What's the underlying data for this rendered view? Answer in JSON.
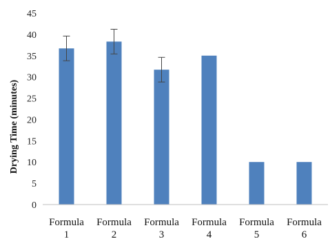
{
  "chart_data": {
    "type": "bar",
    "title": "",
    "xlabel": "",
    "ylabel": "Drying Time (minutes)",
    "ylim": [
      0,
      45
    ],
    "yticks": [
      0,
      5,
      10,
      15,
      20,
      25,
      30,
      35,
      40,
      45
    ],
    "grid": false,
    "legend": "none",
    "bar_color": "#4f81bd",
    "categories": [
      {
        "line1": "Formula",
        "line2": "1"
      },
      {
        "line1": "Formula",
        "line2": "2"
      },
      {
        "line1": "Formula",
        "line2": "3"
      },
      {
        "line1": "Formula",
        "line2": "4"
      },
      {
        "line1": "Formula",
        "line2": "5"
      },
      {
        "line1": "Formula",
        "line2": "6"
      }
    ],
    "values": [
      36.7,
      38.3,
      31.7,
      35.0,
      10.0,
      10.0
    ],
    "errors": [
      2.9,
      2.9,
      2.9,
      0.0,
      0.0,
      0.0
    ]
  }
}
